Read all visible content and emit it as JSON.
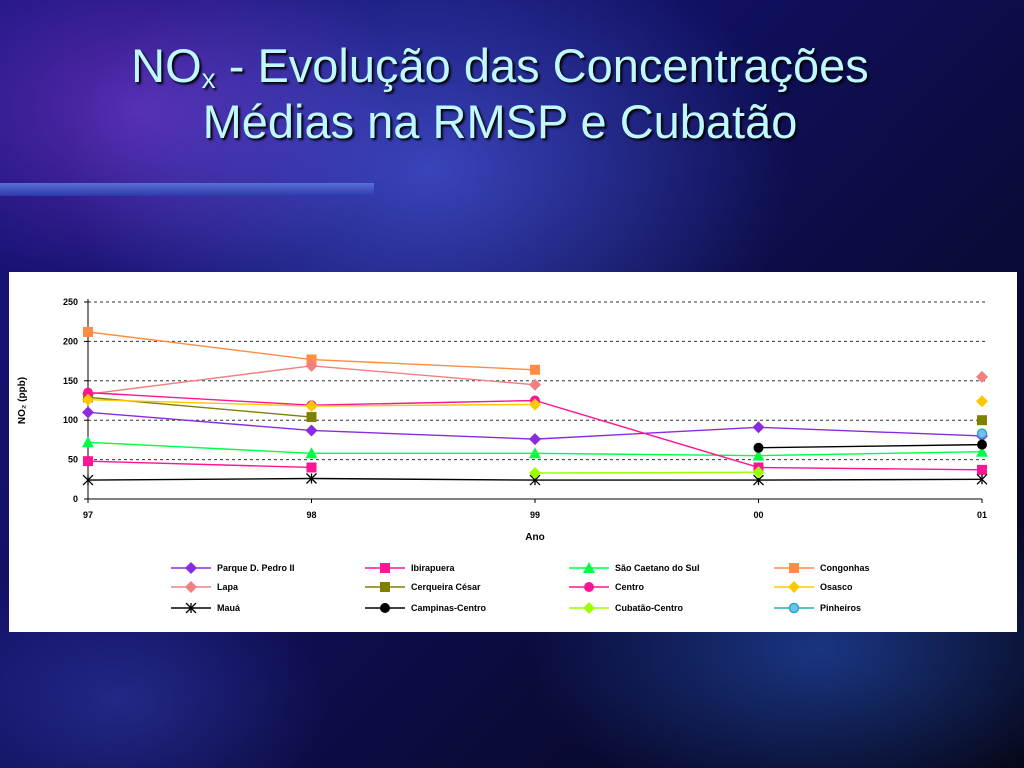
{
  "slide": {
    "title_main": "NO",
    "title_sub": "x",
    "title_rest": " - Evolução das Concentrações",
    "title_line2": "Médias na RMSP e Cubatão"
  },
  "chart_data": {
    "type": "line",
    "title": "",
    "xlabel": "Ano",
    "ylabel": "NO₂ (ppb)",
    "categories": [
      "97",
      "98",
      "99",
      "00",
      "01"
    ],
    "ylim": [
      0,
      250
    ],
    "yticks": [
      0,
      50,
      100,
      150,
      200,
      250
    ],
    "grid": "horizontal-dashed",
    "legend_position": "bottom",
    "series": [
      {
        "name": "Parque D. Pedro II",
        "color": "#8a2be2",
        "marker": "diamond",
        "values": [
          110,
          87,
          76,
          91,
          80
        ]
      },
      {
        "name": "Ibirapuera",
        "color": "#ff1493",
        "marker": "square",
        "values": [
          48,
          40,
          null,
          40,
          37
        ]
      },
      {
        "name": "São Caetano do Sul",
        "color": "#00ff44",
        "marker": "triangle",
        "values": [
          72,
          58,
          58,
          55,
          60
        ]
      },
      {
        "name": "Congonhas",
        "color": "#ff8c42",
        "marker": "square",
        "values": [
          212,
          177,
          164,
          null,
          null
        ]
      },
      {
        "name": "Lapa",
        "color": "#f08080",
        "marker": "diamond",
        "values": [
          133,
          169,
          145,
          null,
          155
        ]
      },
      {
        "name": "Cerqueira César",
        "color": "#808000",
        "marker": "square",
        "values": [
          129,
          104,
          null,
          null,
          100
        ]
      },
      {
        "name": "Centro",
        "color": "#ff1493",
        "marker": "asterisk-circle",
        "values": [
          135,
          119,
          125,
          40,
          null
        ]
      },
      {
        "name": "Osasco",
        "color": "#ffc800",
        "marker": "diamond",
        "values": [
          126,
          118,
          120,
          null,
          124
        ]
      },
      {
        "name": "Mauá",
        "color": "#000000",
        "marker": "x",
        "values": [
          24,
          26,
          24,
          24,
          25
        ]
      },
      {
        "name": "Campinas-Centro",
        "color": "#000000",
        "marker": "circle",
        "values": [
          null,
          null,
          null,
          65,
          69
        ]
      },
      {
        "name": "Cubatão-Centro",
        "color": "#9aff00",
        "marker": "diamond",
        "values": [
          null,
          null,
          33,
          34,
          null
        ]
      },
      {
        "name": "Pinheiros",
        "color": "#20b2aa",
        "marker": "open-circle",
        "values": [
          null,
          null,
          null,
          null,
          83
        ]
      }
    ]
  }
}
